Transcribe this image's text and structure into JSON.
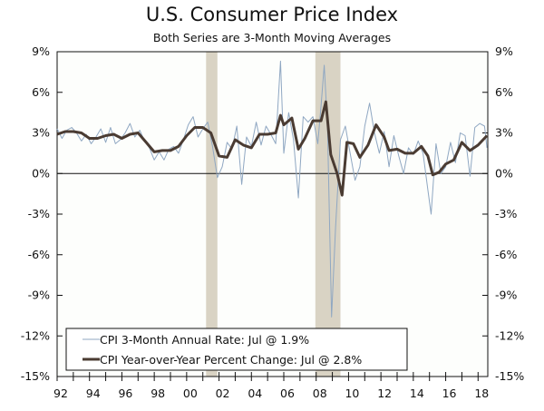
{
  "chart_data": {
    "type": "line",
    "title": "U.S. Consumer Price Index",
    "subtitle": "Both Series are 3-Month Moving Averages",
    "xlabel": "",
    "ylabel": "",
    "xlim": [
      1992,
      2018.6
    ],
    "ylim": [
      -15,
      9
    ],
    "y_ticks": [
      9,
      6,
      3,
      0,
      -3,
      -6,
      -9,
      -12,
      -15
    ],
    "y_tick_labels": [
      "9%",
      "6%",
      "3%",
      "0%",
      "-3%",
      "-6%",
      "-9%",
      "-12%",
      "-15%"
    ],
    "x_ticks": [
      1992,
      1994,
      1996,
      1998,
      2000,
      2002,
      2004,
      2006,
      2008,
      2010,
      2012,
      2014,
      2016,
      2018
    ],
    "x_tick_labels": [
      "92",
      "94",
      "96",
      "98",
      "00",
      "02",
      "04",
      "06",
      "08",
      "10",
      "12",
      "14",
      "16",
      "18"
    ],
    "grid": false,
    "legend_placement": "bottom-left",
    "recession_bands": [
      [
        2001.2,
        2001.9
      ],
      [
        2007.95,
        2009.5
      ]
    ],
    "colors": {
      "recession": "#d9d3c4",
      "three_month": "#8fa7c2",
      "yoy": "#4a3b32"
    },
    "series": [
      {
        "name": "CPI 3-Month Annual Rate: Jul @ 1.9%",
        "style": "thin",
        "points": [
          [
            1992,
            3.3
          ],
          [
            1992.3,
            2.6
          ],
          [
            1992.6,
            3.2
          ],
          [
            1992.9,
            3.4
          ],
          [
            1993.2,
            3.0
          ],
          [
            1993.5,
            2.4
          ],
          [
            1993.8,
            2.9
          ],
          [
            1994.1,
            2.2
          ],
          [
            1994.4,
            2.7
          ],
          [
            1994.7,
            3.3
          ],
          [
            1995,
            2.3
          ],
          [
            1995.3,
            3.4
          ],
          [
            1995.6,
            2.2
          ],
          [
            1995.9,
            2.5
          ],
          [
            1996.2,
            3.0
          ],
          [
            1996.5,
            3.7
          ],
          [
            1996.8,
            2.7
          ],
          [
            1997.1,
            3.2
          ],
          [
            1997.4,
            2.4
          ],
          [
            1997.7,
            1.9
          ],
          [
            1998,
            1.0
          ],
          [
            1998.3,
            1.6
          ],
          [
            1998.6,
            1.0
          ],
          [
            1998.9,
            1.8
          ],
          [
            1999.2,
            2.0
          ],
          [
            1999.5,
            1.5
          ],
          [
            1999.8,
            2.5
          ],
          [
            2000.1,
            3.6
          ],
          [
            2000.4,
            4.2
          ],
          [
            2000.7,
            2.7
          ],
          [
            2001,
            3.3
          ],
          [
            2001.3,
            3.8
          ],
          [
            2001.6,
            2.0
          ],
          [
            2001.9,
            -0.3
          ],
          [
            2002.2,
            0.5
          ],
          [
            2002.5,
            2.3
          ],
          [
            2002.8,
            1.8
          ],
          [
            2003.1,
            3.5
          ],
          [
            2003.4,
            -0.8
          ],
          [
            2003.7,
            2.7
          ],
          [
            2004,
            2.0
          ],
          [
            2004.3,
            3.8
          ],
          [
            2004.6,
            2.1
          ],
          [
            2004.9,
            3.5
          ],
          [
            2005.2,
            2.9
          ],
          [
            2005.5,
            2.2
          ],
          [
            2005.8,
            8.3
          ],
          [
            2006,
            1.5
          ],
          [
            2006.3,
            4.5
          ],
          [
            2006.6,
            2.5
          ],
          [
            2006.9,
            -1.8
          ],
          [
            2007.2,
            4.2
          ],
          [
            2007.5,
            3.8
          ],
          [
            2007.8,
            4.2
          ],
          [
            2008.1,
            2.2
          ],
          [
            2008.3,
            5.0
          ],
          [
            2008.5,
            8.0
          ],
          [
            2008.7,
            3.5
          ],
          [
            2008.95,
            -10.6
          ],
          [
            2009.2,
            -4.0
          ],
          [
            2009.5,
            2.5
          ],
          [
            2009.8,
            3.5
          ],
          [
            2010.1,
            1.5
          ],
          [
            2010.4,
            -0.5
          ],
          [
            2010.7,
            0.5
          ],
          [
            2011,
            3.5
          ],
          [
            2011.3,
            5.2
          ],
          [
            2011.6,
            3.0
          ],
          [
            2011.9,
            1.5
          ],
          [
            2012.2,
            3.1
          ],
          [
            2012.5,
            0.5
          ],
          [
            2012.8,
            2.8
          ],
          [
            2013.1,
            1.3
          ],
          [
            2013.4,
            0.0
          ],
          [
            2013.7,
            1.9
          ],
          [
            2014,
            1.4
          ],
          [
            2014.3,
            2.4
          ],
          [
            2014.6,
            1.5
          ],
          [
            2014.9,
            -1.2
          ],
          [
            2015.1,
            -3.0
          ],
          [
            2015.4,
            2.2
          ],
          [
            2015.7,
            0.0
          ],
          [
            2016,
            0.5
          ],
          [
            2016.3,
            2.3
          ],
          [
            2016.6,
            0.8
          ],
          [
            2016.9,
            3.0
          ],
          [
            2017.2,
            2.8
          ],
          [
            2017.5,
            -0.2
          ],
          [
            2017.8,
            3.4
          ],
          [
            2018.1,
            3.7
          ],
          [
            2018.4,
            3.5
          ],
          [
            2018.55,
            1.9
          ]
        ]
      },
      {
        "name": "CPI Year-over-Year Percent Change: Jul @ 2.8%",
        "style": "thick",
        "points": [
          [
            1992,
            2.9
          ],
          [
            1992.5,
            3.1
          ],
          [
            1993,
            3.1
          ],
          [
            1993.5,
            3.0
          ],
          [
            1994,
            2.6
          ],
          [
            1994.5,
            2.6
          ],
          [
            1995,
            2.8
          ],
          [
            1995.5,
            2.9
          ],
          [
            1996,
            2.6
          ],
          [
            1996.5,
            2.9
          ],
          [
            1997,
            3.0
          ],
          [
            1997.5,
            2.3
          ],
          [
            1998,
            1.6
          ],
          [
            1998.5,
            1.7
          ],
          [
            1999,
            1.7
          ],
          [
            1999.5,
            2.0
          ],
          [
            2000,
            2.8
          ],
          [
            2000.5,
            3.4
          ],
          [
            2001,
            3.4
          ],
          [
            2001.5,
            3.0
          ],
          [
            2002,
            1.3
          ],
          [
            2002.5,
            1.2
          ],
          [
            2003,
            2.5
          ],
          [
            2003.5,
            2.1
          ],
          [
            2004,
            1.9
          ],
          [
            2004.5,
            2.9
          ],
          [
            2005,
            2.9
          ],
          [
            2005.5,
            3.0
          ],
          [
            2005.8,
            4.3
          ],
          [
            2006,
            3.6
          ],
          [
            2006.5,
            4.1
          ],
          [
            2006.9,
            1.8
          ],
          [
            2007.3,
            2.6
          ],
          [
            2007.8,
            3.9
          ],
          [
            2008.3,
            3.9
          ],
          [
            2008.6,
            5.3
          ],
          [
            2008.9,
            1.4
          ],
          [
            2009.3,
            0.0
          ],
          [
            2009.6,
            -1.6
          ],
          [
            2009.9,
            2.3
          ],
          [
            2010.3,
            2.2
          ],
          [
            2010.7,
            1.2
          ],
          [
            2011.2,
            2.1
          ],
          [
            2011.7,
            3.6
          ],
          [
            2012.2,
            2.7
          ],
          [
            2012.5,
            1.7
          ],
          [
            2013,
            1.8
          ],
          [
            2013.5,
            1.5
          ],
          [
            2014,
            1.5
          ],
          [
            2014.5,
            2.0
          ],
          [
            2014.9,
            1.3
          ],
          [
            2015.2,
            -0.1
          ],
          [
            2015.6,
            0.1
          ],
          [
            2016,
            0.7
          ],
          [
            2016.5,
            1.0
          ],
          [
            2017,
            2.3
          ],
          [
            2017.5,
            1.7
          ],
          [
            2018,
            2.1
          ],
          [
            2018.55,
            2.8
          ]
        ]
      }
    ]
  }
}
